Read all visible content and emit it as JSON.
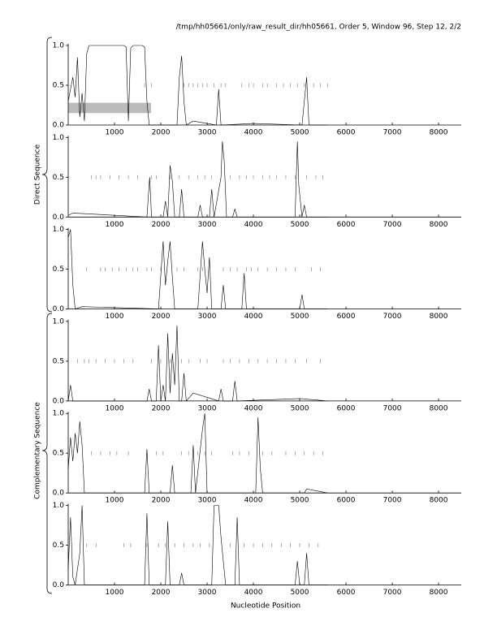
{
  "header": "/tmp/hh05661/only/raw_result_dir/hh05661, Order 5, Window 96, Step 12, 2/2",
  "x_label": "Nucleotide Position",
  "group_labels": [
    "Direct Sequence",
    "Complementary Sequence"
  ],
  "chart_data": [
    {
      "type": "line",
      "color": "#000000",
      "marker_color": "#777777",
      "highlight_color": "#bbbbbb",
      "xlim": [
        0,
        8490
      ],
      "ylim": [
        0,
        1
      ],
      "xticks": [
        1000,
        2000,
        3000,
        4000,
        5000,
        6000,
        7000,
        8000
      ],
      "yticks": [
        {
          "value": 0,
          "label": "0.0"
        },
        {
          "value": 0.5,
          "label": "0.5"
        },
        {
          "value": 1,
          "label": "1.0"
        }
      ],
      "highlight": [
        0,
        1790
      ],
      "x": [
        0,
        100,
        150,
        200,
        250,
        300,
        350,
        400,
        450,
        500,
        1200,
        1250,
        1300,
        1350,
        1400,
        1600,
        1650,
        1700,
        1750,
        2000,
        2350,
        2400,
        2450,
        2500,
        2550,
        2700,
        3200,
        3250,
        3300,
        4000,
        5050,
        5100,
        5150,
        5200,
        5300,
        5600
      ],
      "values": [
        0.3,
        0.6,
        0.35,
        0.85,
        0.1,
        0.4,
        0.05,
        0.9,
        1.0,
        1.0,
        1.0,
        0.98,
        0.05,
        0.97,
        1.0,
        1.0,
        0.98,
        0.3,
        0,
        0,
        0,
        0.6,
        0.87,
        0.3,
        0,
        0.05,
        0,
        0.45,
        0,
        0.02,
        0,
        0.3,
        0.6,
        0,
        0,
        0
      ],
      "markers": [
        1650,
        1800,
        2500,
        2600,
        2700,
        2800,
        2900,
        3000,
        3150,
        3300,
        3400,
        3750,
        3900,
        4000,
        4200,
        4300,
        4500,
        4650,
        4800,
        4950,
        5100,
        5300,
        5450,
        5600
      ]
    },
    {
      "type": "line",
      "color": "#000000",
      "marker_color": "#777777",
      "xlim": [
        0,
        8490
      ],
      "ylim": [
        0,
        1
      ],
      "xticks": [
        1000,
        2000,
        3000,
        4000,
        5000,
        6000,
        7000,
        8000
      ],
      "yticks": [
        {
          "value": 0,
          "label": "0.0"
        },
        {
          "value": 0.5,
          "label": "0.5"
        },
        {
          "value": 1,
          "label": "1.0"
        }
      ],
      "x": [
        0,
        100,
        1700,
        1760,
        1800,
        2050,
        2100,
        2150,
        2200,
        2250,
        2300,
        2400,
        2450,
        2500,
        2800,
        2850,
        2900,
        3050,
        3100,
        3150,
        3300,
        3330,
        3370,
        3420,
        3550,
        3600,
        3650,
        4900,
        4950,
        4980,
        5050,
        5100,
        5150,
        5600
      ],
      "values": [
        0.02,
        0.05,
        0,
        0.5,
        0,
        0,
        0.2,
        0,
        0.65,
        0.45,
        0,
        0,
        0.35,
        0,
        0,
        0.15,
        0,
        0,
        0.35,
        0,
        0.5,
        0.95,
        0.7,
        0,
        0,
        0.1,
        0,
        0,
        0.95,
        0.4,
        0,
        0.15,
        0,
        0
      ],
      "markers": [
        500,
        600,
        700,
        900,
        1100,
        1300,
        1500,
        1800,
        1900,
        2200,
        2400,
        2600,
        2800,
        2950,
        3100,
        3500,
        3700,
        3850,
        4000,
        4200,
        4350,
        4500,
        4700,
        4900,
        5150,
        5350,
        5500
      ]
    },
    {
      "type": "line",
      "color": "#000000",
      "marker_color": "#777777",
      "xlim": [
        0,
        8490
      ],
      "ylim": [
        0,
        1
      ],
      "xticks": [
        1000,
        2000,
        3000,
        4000,
        5000,
        6000,
        7000,
        8000
      ],
      "yticks": [
        {
          "value": 0,
          "label": "0.0"
        },
        {
          "value": 0.5,
          "label": "0.5"
        },
        {
          "value": 1,
          "label": "1.0"
        }
      ],
      "x": [
        0,
        50,
        100,
        150,
        300,
        1950,
        2050,
        2100,
        2150,
        2200,
        2250,
        2300,
        2800,
        2900,
        2950,
        3000,
        3050,
        3100,
        3300,
        3350,
        3400,
        3750,
        3800,
        3850,
        5000,
        5050,
        5100,
        5600
      ],
      "values": [
        0.9,
        1.0,
        0.3,
        0,
        0.03,
        0,
        0.85,
        0.3,
        0.6,
        0.85,
        0.4,
        0,
        0,
        0.85,
        0.5,
        0.2,
        0.65,
        0,
        0,
        0.3,
        0,
        0,
        0.45,
        0,
        0,
        0.18,
        0,
        0
      ],
      "markers": [
        400,
        700,
        800,
        950,
        1100,
        1250,
        1400,
        1500,
        1700,
        1800,
        2000,
        2350,
        2500,
        2800,
        2900,
        3350,
        3500,
        3650,
        3850,
        3950,
        4100,
        4300,
        4500,
        4700,
        4900,
        5250,
        5450
      ]
    },
    {
      "type": "line",
      "color": "#000000",
      "marker_color": "#777777",
      "xlim": [
        0,
        8490
      ],
      "ylim": [
        0,
        1
      ],
      "xticks": [
        1000,
        2000,
        3000,
        4000,
        5000,
        6000,
        7000,
        8000
      ],
      "yticks": [
        {
          "value": 0,
          "label": "0.0"
        },
        {
          "value": 0.5,
          "label": "0.5"
        },
        {
          "value": 1,
          "label": "1.0"
        }
      ],
      "x": [
        0,
        50,
        100,
        1700,
        1750,
        1800,
        1900,
        1950,
        2000,
        2050,
        2100,
        2150,
        2200,
        2250,
        2300,
        2350,
        2400,
        2450,
        2500,
        2550,
        2700,
        3250,
        3300,
        3350,
        3550,
        3600,
        3650,
        5000,
        5600
      ],
      "values": [
        0,
        0.2,
        0,
        0,
        0.15,
        0,
        0,
        0.7,
        0,
        0.2,
        0,
        0.85,
        0.1,
        0.6,
        0.2,
        0.95,
        0,
        0,
        0.35,
        0,
        0.1,
        0,
        0.15,
        0,
        0,
        0.25,
        0,
        0.03,
        0
      ],
      "markers": [
        200,
        350,
        450,
        600,
        800,
        1000,
        1200,
        1400,
        1800,
        2000,
        2200,
        2450,
        2600,
        2850,
        3000,
        3350,
        3500,
        3700,
        3900,
        4100,
        4300,
        4500,
        4700,
        4900,
        5150,
        5450
      ]
    },
    {
      "type": "line",
      "color": "#000000",
      "marker_color": "#777777",
      "xlim": [
        0,
        8490
      ],
      "ylim": [
        0,
        1
      ],
      "xticks": [
        1000,
        2000,
        3000,
        4000,
        5000,
        6000,
        7000,
        8000
      ],
      "yticks": [
        {
          "value": 0,
          "label": "0.0"
        },
        {
          "value": 0.5,
          "label": "0.5"
        },
        {
          "value": 1,
          "label": "1.0"
        }
      ],
      "x": [
        0,
        50,
        100,
        150,
        200,
        250,
        300,
        350,
        1650,
        1700,
        1750,
        2200,
        2250,
        2300,
        2650,
        2700,
        2750,
        2900,
        2950,
        3000,
        4050,
        4100,
        4150,
        4200,
        5100,
        5150,
        5600
      ],
      "values": [
        0.3,
        0.7,
        0.4,
        0.75,
        0.5,
        0.9,
        0.6,
        0,
        0,
        0.55,
        0,
        0,
        0.35,
        0,
        0,
        0.6,
        0,
        0.8,
        1.0,
        0,
        0,
        0.95,
        0.3,
        0,
        0,
        0.05,
        0
      ],
      "markers": [
        500,
        700,
        900,
        1050,
        1300,
        1700,
        1900,
        2050,
        2450,
        2600,
        2800,
        2950,
        3100,
        3550,
        3700,
        3900,
        4200,
        4400,
        4700,
        4900,
        5100,
        5300,
        5500
      ]
    },
    {
      "type": "line",
      "color": "#000000",
      "marker_color": "#777777",
      "xlim": [
        0,
        8490
      ],
      "ylim": [
        0,
        1
      ],
      "xticks": [
        1000,
        2000,
        3000,
        4000,
        5000,
        6000,
        7000,
        8000
      ],
      "yticks": [
        {
          "value": 0,
          "label": "0.0"
        },
        {
          "value": 0.5,
          "label": "0.5"
        },
        {
          "value": 1,
          "label": "1.0"
        }
      ],
      "x": [
        0,
        50,
        100,
        150,
        250,
        300,
        350,
        1650,
        1700,
        1750,
        2100,
        2150,
        2200,
        2400,
        2450,
        2500,
        3100,
        3150,
        3250,
        3300,
        3350,
        3400,
        3600,
        3650,
        3700,
        4900,
        4950,
        5000,
        5100,
        5150,
        5200,
        5600
      ],
      "values": [
        0.2,
        0.85,
        0.1,
        0,
        0.4,
        1.0,
        0,
        0,
        0.9,
        0,
        0,
        0.8,
        0,
        0,
        0.15,
        0,
        0,
        1.0,
        1.0,
        0.6,
        0.3,
        0,
        0,
        0.85,
        0,
        0,
        0.3,
        0,
        0,
        0.4,
        0,
        0
      ],
      "markers": [
        400,
        600,
        1200,
        1350,
        1700,
        1950,
        2100,
        2300,
        2500,
        2700,
        2850,
        3050,
        3500,
        3800,
        4000,
        4200,
        4400,
        4600,
        4800,
        5000,
        5200,
        5400
      ]
    }
  ]
}
